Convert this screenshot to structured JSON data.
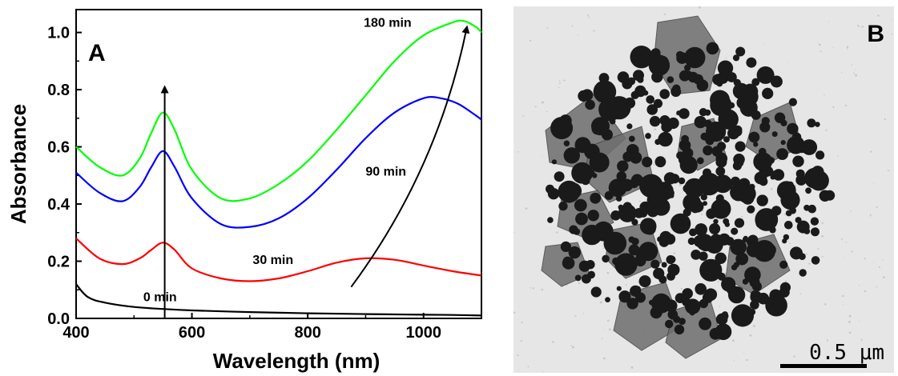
{
  "chart_data": {
    "type": "line",
    "panel_label": "A",
    "xlabel": "Wavelength (nm)",
    "ylabel": "Absorbance",
    "xlim": [
      400,
      1100
    ],
    "ylim": [
      0,
      1.08
    ],
    "xticks": [
      400,
      600,
      800,
      1000
    ],
    "xtick_labels": [
      "400",
      "600",
      "800",
      "1000"
    ],
    "yticks": [
      0.0,
      0.2,
      0.4,
      0.6,
      0.8,
      1.0
    ],
    "ytick_labels": [
      "0.0",
      "0.2",
      "0.4",
      "0.6",
      "0.8",
      "1.0"
    ],
    "grid": false,
    "series": [
      {
        "name": "0 min",
        "color": "#000000",
        "x": [
          400,
          420,
          450,
          500,
          550,
          600,
          700,
          800,
          900,
          1000,
          1050,
          1100
        ],
        "y": [
          0.12,
          0.075,
          0.055,
          0.04,
          0.033,
          0.028,
          0.022,
          0.018,
          0.015,
          0.013,
          0.012,
          0.01
        ]
      },
      {
        "name": "30 min",
        "color": "#ff0000",
        "x": [
          400,
          440,
          480,
          510,
          530,
          550,
          570,
          600,
          650,
          700,
          750,
          800,
          850,
          900,
          950,
          1000,
          1050,
          1100
        ],
        "y": [
          0.28,
          0.21,
          0.19,
          0.21,
          0.24,
          0.265,
          0.24,
          0.175,
          0.14,
          0.13,
          0.14,
          0.165,
          0.195,
          0.21,
          0.205,
          0.185,
          0.165,
          0.15
        ]
      },
      {
        "name": "90 min",
        "color": "#0000ff",
        "x": [
          400,
          440,
          480,
          510,
          530,
          550,
          570,
          600,
          650,
          700,
          750,
          800,
          850,
          900,
          950,
          1000,
          1030,
          1060,
          1090,
          1100
        ],
        "y": [
          0.51,
          0.44,
          0.41,
          0.46,
          0.53,
          0.585,
          0.53,
          0.42,
          0.33,
          0.32,
          0.35,
          0.42,
          0.52,
          0.63,
          0.72,
          0.77,
          0.77,
          0.75,
          0.71,
          0.695
        ]
      },
      {
        "name": "180 min",
        "color": "#00ff00",
        "x": [
          400,
          440,
          480,
          510,
          530,
          550,
          570,
          600,
          650,
          700,
          750,
          800,
          850,
          900,
          950,
          1000,
          1050,
          1070,
          1090,
          1100
        ],
        "y": [
          0.6,
          0.53,
          0.5,
          0.56,
          0.65,
          0.72,
          0.66,
          0.52,
          0.42,
          0.42,
          0.47,
          0.55,
          0.66,
          0.78,
          0.9,
          0.99,
          1.035,
          1.04,
          1.02,
          1.0
        ]
      }
    ],
    "annotations": [
      {
        "label": "0 min",
        "x": 545,
        "y": 0.06
      },
      {
        "label": "30 min",
        "x": 740,
        "y": 0.19
      },
      {
        "label": "90 min",
        "x": 935,
        "y": 0.5
      },
      {
        "label": "180 min",
        "x": 938,
        "y": 1.02
      }
    ],
    "arrows": [
      {
        "from": [
          553,
          0.0
        ],
        "to": [
          553,
          0.81
        ],
        "style": "straight"
      },
      {
        "from": [
          875,
          0.11
        ],
        "to": [
          1075,
          1.02
        ],
        "style": "curved"
      }
    ]
  },
  "tem_image": {
    "panel_label": "B",
    "scale_bar_label": "0.5 μm"
  }
}
